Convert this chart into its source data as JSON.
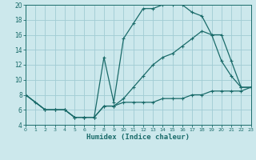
{
  "xlabel": "Humidex (Indice chaleur)",
  "xlim": [
    0,
    23
  ],
  "ylim": [
    4,
    20
  ],
  "xticks": [
    0,
    1,
    2,
    3,
    4,
    5,
    6,
    7,
    8,
    9,
    10,
    11,
    12,
    13,
    14,
    15,
    16,
    17,
    18,
    19,
    20,
    21,
    22,
    23
  ],
  "yticks": [
    4,
    6,
    8,
    10,
    12,
    14,
    16,
    18,
    20
  ],
  "bg_color": "#cce8ec",
  "grid_color": "#a0ccd4",
  "line_color": "#1a6b6a",
  "line1_x": [
    0,
    1,
    2,
    3,
    4,
    5,
    6,
    7,
    8,
    9,
    10,
    11,
    12,
    13,
    14,
    15,
    16,
    17,
    18,
    19,
    20,
    21,
    22,
    23
  ],
  "line1_y": [
    8,
    7,
    6,
    6,
    6,
    5,
    5,
    5,
    6.5,
    6.5,
    7,
    7,
    7,
    7,
    7.5,
    7.5,
    7.5,
    8,
    8,
    8.5,
    8.5,
    8.5,
    8.5,
    9
  ],
  "line2_x": [
    0,
    2,
    3,
    4,
    5,
    6,
    7,
    8,
    9,
    10,
    11,
    12,
    13,
    14,
    15,
    16,
    17,
    18,
    19,
    20,
    21,
    22,
    23
  ],
  "line2_y": [
    8,
    6,
    6,
    6,
    5,
    5,
    5,
    13,
    7,
    15.5,
    17.5,
    19.5,
    19.5,
    20,
    20,
    20,
    19,
    18.5,
    16,
    12.5,
    10.5,
    9,
    9
  ],
  "line3_x": [
    0,
    2,
    3,
    4,
    5,
    6,
    7,
    8,
    9,
    10,
    11,
    12,
    13,
    14,
    15,
    16,
    17,
    18,
    19,
    20,
    21,
    22,
    23
  ],
  "line3_y": [
    8,
    6,
    6,
    6,
    5,
    5,
    5,
    6.5,
    6.5,
    7.5,
    9,
    10.5,
    12,
    13,
    13.5,
    14.5,
    15.5,
    16.5,
    16,
    16,
    12.5,
    9,
    9
  ]
}
